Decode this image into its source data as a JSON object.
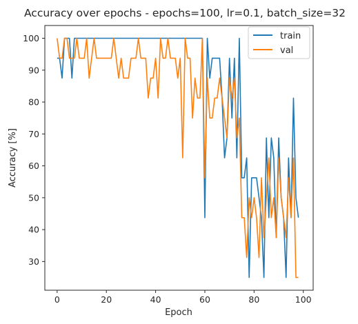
{
  "chart_data": {
    "type": "line",
    "title": "Accuracy over epochs - epochs=100, lr=0.1, batch_size=32",
    "xlabel": "Epoch",
    "ylabel": "Accuracy [%]",
    "xlim": [
      -5,
      104
    ],
    "ylim": [
      21,
      104
    ],
    "x_ticks": [
      0,
      20,
      40,
      60,
      80,
      100
    ],
    "y_ticks": [
      30,
      40,
      50,
      60,
      70,
      80,
      90,
      100
    ],
    "grid": false,
    "legend_position": "top-right",
    "series": [
      {
        "name": "train",
        "color": "#1f77b4",
        "values": [
          93.75,
          93.75,
          87.5,
          100,
          100,
          100,
          87.5,
          100,
          100,
          100,
          100,
          100,
          100,
          100,
          100,
          100,
          100,
          100,
          100,
          100,
          100,
          100,
          100,
          100,
          100,
          100,
          100,
          100,
          100,
          100,
          100,
          100,
          100,
          100,
          100,
          100,
          100,
          100,
          100,
          100,
          100,
          100,
          100,
          100,
          100,
          100,
          100,
          100,
          100,
          100,
          100,
          100,
          100,
          100,
          100,
          100,
          100,
          100,
          100,
          100,
          43.75,
          100,
          87.5,
          93.75,
          93.75,
          93.75,
          93.75,
          81.25,
          62.5,
          68.75,
          93.75,
          75,
          93.75,
          62.5,
          100,
          56.25,
          56.25,
          62.5,
          25,
          56.25,
          56.25,
          56.25,
          50,
          43.75,
          25,
          68.75,
          43.75,
          68.75,
          62.5,
          37.5,
          68.75,
          50,
          43.75,
          25,
          62.5,
          43.75,
          81.25,
          50,
          43.75
        ]
      },
      {
        "name": "val",
        "color": "#ff7f0e",
        "values": [
          100,
          93.75,
          93.75,
          100,
          100,
          93.75,
          93.75,
          93.75,
          100,
          93.75,
          93.75,
          93.75,
          100,
          87.5,
          93.75,
          100,
          93.75,
          93.75,
          93.75,
          93.75,
          93.75,
          93.75,
          93.75,
          100,
          93.75,
          87.5,
          93.75,
          87.5,
          87.5,
          87.5,
          93.75,
          93.75,
          93.75,
          100,
          93.75,
          93.75,
          93.75,
          81.25,
          87.5,
          87.5,
          93.75,
          81.25,
          100,
          93.75,
          93.75,
          100,
          93.75,
          93.75,
          93.75,
          87.5,
          93.75,
          62.5,
          100,
          93.75,
          93.75,
          75,
          87.5,
          81.25,
          81.25,
          100,
          56.25,
          87.5,
          75,
          75,
          81.25,
          81.25,
          87.5,
          81.25,
          75,
          68.75,
          87.5,
          81.25,
          87.5,
          68.75,
          75,
          43.75,
          43.75,
          31.25,
          50,
          43.75,
          50,
          43.75,
          31.25,
          56.25,
          37.5,
          50,
          62.5,
          43.75,
          50,
          37.5,
          62.5,
          50,
          43.75,
          37.5,
          56.25,
          43.75,
          62.5,
          25,
          25
        ]
      }
    ]
  }
}
